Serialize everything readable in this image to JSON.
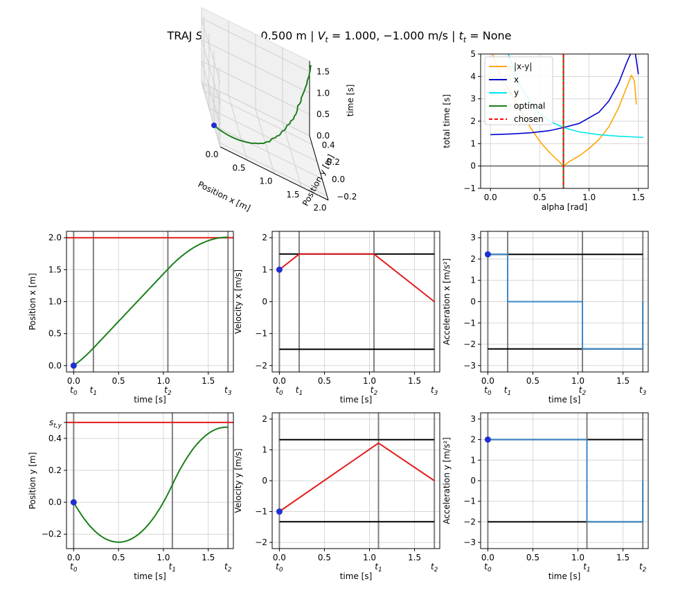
{
  "figure": {
    "title": "TRAJ S_t = 2.000, 0.500 m | V_t = 1.000, −1.000 m/s | t_t = None",
    "title_parts": [
      "TRAJ ",
      "S",
      "t",
      " = 2.000, 0.500 m | ",
      "V",
      "t",
      " = 1.000, −1.000 m/s | ",
      "t",
      "t",
      " = None"
    ]
  },
  "colors": {
    "limit_red": "#e31a1c",
    "limit_black": "#000000",
    "path_green": "#1a7f1a",
    "accel_blue": "#3b88c8",
    "marker_blue": "#1f2fd0",
    "phase_gray": "#808080",
    "grid": "#d6d6d6",
    "orange": "#ffa500",
    "x_blue": "#0000cd",
    "cyan": "#00e5ee",
    "chosen_red": "#ff0000"
  },
  "chart_data": [
    {
      "id": "traj3d",
      "type": "line3d",
      "xlabel": "Position x [m]",
      "ylabel": "Position y [m]",
      "zlabel": "time [s]",
      "xticks": [
        "0.0",
        "0.5",
        "1.0",
        "1.5",
        "2.0"
      ],
      "yticks": [
        "−0.2",
        "0.0",
        "0.2",
        "0.4"
      ],
      "zticks": [
        "0.0",
        "0.5",
        "1.0",
        "1.5"
      ],
      "xlim": [
        0,
        2
      ],
      "ylim": [
        -0.25,
        0.5
      ],
      "zlim": [
        0,
        1.75
      ],
      "start": {
        "x": 0,
        "y": 0,
        "t": 0
      }
    },
    {
      "id": "alpha",
      "type": "line",
      "xlabel": "alpha [rad]",
      "ylabel": "total time [s]",
      "xlim": [
        -0.1,
        1.6
      ],
      "ylim": [
        -1,
        5
      ],
      "xticks": [
        0.0,
        0.5,
        1.0,
        1.5
      ],
      "xtick_labels": [
        "0.0",
        "0.5",
        "1.0",
        "1.5"
      ],
      "yticks": [
        -1,
        0,
        1,
        2,
        3,
        4,
        5
      ],
      "ytick_labels": [
        "−1",
        "0",
        "1",
        "2",
        "3",
        "4",
        "5"
      ],
      "legend_position": "top-left",
      "series": [
        {
          "name": "|x-y|",
          "color": "#ffa500",
          "x": [
            0.02,
            0.1,
            0.2,
            0.3,
            0.4,
            0.5,
            0.6,
            0.7,
            0.74,
            0.8,
            0.9,
            1.0,
            1.1,
            1.2,
            1.3,
            1.38,
            1.43,
            1.46,
            1.48
          ],
          "y": [
            5.0,
            4.0,
            3.3,
            2.5,
            1.75,
            1.1,
            0.6,
            0.18,
            0.0,
            0.2,
            0.45,
            0.78,
            1.18,
            1.75,
            2.6,
            3.5,
            4.05,
            3.8,
            2.75
          ]
        },
        {
          "name": "x",
          "color": "#0000cd",
          "x": [
            0.0,
            0.2,
            0.4,
            0.6,
            0.74,
            0.9,
            1.1,
            1.2,
            1.3,
            1.38,
            1.43,
            1.47,
            1.5
          ],
          "y": [
            1.4,
            1.43,
            1.48,
            1.58,
            1.72,
            1.9,
            2.4,
            2.9,
            3.7,
            4.6,
            5.1,
            5.0,
            4.1
          ]
        },
        {
          "name": "y",
          "color": "#00e5ee",
          "x": [
            0.18,
            0.3,
            0.45,
            0.6,
            0.74,
            0.9,
            1.1,
            1.3,
            1.5,
            1.55
          ],
          "y": [
            5.0,
            3.6,
            2.55,
            2.0,
            1.72,
            1.52,
            1.4,
            1.33,
            1.29,
            1.28
          ]
        },
        {
          "name": "optimal",
          "color": "#1a7f1a",
          "x": [],
          "y": []
        },
        {
          "name": "chosen",
          "color": "#ff0000",
          "dashed": true,
          "vline": 0.74
        }
      ],
      "hline": 0,
      "optimal_vline": 0.74
    },
    {
      "id": "pos_x",
      "type": "line",
      "xlabel": "time [s]",
      "ylabel": "Position x [m]",
      "xlim": [
        -0.08,
        1.78
      ],
      "ylim": [
        -0.1,
        2.1
      ],
      "xticks": [
        0,
        0.5,
        1.0,
        1.5
      ],
      "xtick_labels": [
        "0.0",
        "0.5",
        "1.0",
        "1.5"
      ],
      "yticks": [
        0,
        0.5,
        1.0,
        1.5,
        2.0
      ],
      "ytick_labels": [
        "0.0",
        "0.5",
        "1.0",
        "1.5",
        "2.0"
      ],
      "phases": [
        0,
        0.22,
        1.05,
        1.72
      ],
      "phase_labels": [
        "t0",
        "t1",
        "t2",
        "t3"
      ],
      "target_line": 2.0,
      "trajectory": {
        "type": "pos",
        "p0": 0,
        "v0": 1,
        "accs": [
          2.22,
          0,
          -2.22
        ],
        "times": [
          0,
          0.22,
          1.05,
          1.72
        ]
      },
      "start_point": {
        "x": 0,
        "y": 0
      }
    },
    {
      "id": "vel_x",
      "type": "line",
      "xlabel": "time [s]",
      "ylabel": "Velocity x [m/s]",
      "xlim": [
        -0.08,
        1.78
      ],
      "ylim": [
        -2.2,
        2.2
      ],
      "xticks": [
        0,
        0.5,
        1.0,
        1.5
      ],
      "xtick_labels": [
        "0.0",
        "0.5",
        "1.0",
        "1.5"
      ],
      "yticks": [
        -2,
        -1,
        0,
        1,
        2
      ],
      "ytick_labels": [
        "−2",
        "−1",
        "0",
        "1",
        "2"
      ],
      "phases": [
        0,
        0.22,
        1.05,
        1.72
      ],
      "phase_labels": [
        "t0",
        "t1",
        "t2",
        "t3"
      ],
      "limits": [
        1.49,
        -1.49
      ],
      "points": {
        "x": [
          0,
          0.22,
          1.05,
          1.72
        ],
        "y": [
          1.0,
          1.49,
          1.49,
          0.0
        ]
      },
      "start_point": {
        "x": 0,
        "y": 1.0
      }
    },
    {
      "id": "acc_x",
      "type": "line",
      "xlabel": "time [s]",
      "ylabel": "Acceleration x [m/s²]",
      "xlim": [
        -0.08,
        1.78
      ],
      "ylim": [
        -3.3,
        3.3
      ],
      "xticks": [
        0,
        0.5,
        1.0,
        1.5
      ],
      "xtick_labels": [
        "0.0",
        "0.5",
        "1.0",
        "1.5"
      ],
      "yticks": [
        -3,
        -2,
        -1,
        0,
        1,
        2,
        3
      ],
      "ytick_labels": [
        "−3",
        "−2",
        "−1",
        "0",
        "1",
        "2",
        "3"
      ],
      "phases": [
        0,
        0.22,
        1.05,
        1.72
      ],
      "phase_labels": [
        "t0",
        "t1",
        "t2",
        "t3"
      ],
      "limits": [
        2.22,
        -2.22
      ],
      "points": {
        "x": [
          0,
          0.22,
          0.22,
          1.05,
          1.05,
          1.72,
          1.72
        ],
        "y": [
          2.22,
          2.22,
          0,
          0,
          -2.22,
          -2.22,
          0
        ]
      },
      "start_point": {
        "x": 0,
        "y": 2.22
      }
    },
    {
      "id": "pos_y",
      "type": "line",
      "xlabel": "time [s]",
      "ylabel": "Position y [m]",
      "xlim": [
        -0.08,
        1.78
      ],
      "ylim": [
        -0.29,
        0.56
      ],
      "xticks": [
        0,
        0.5,
        1.0,
        1.5
      ],
      "xtick_labels": [
        "0.0",
        "0.5",
        "1.0",
        "1.5"
      ],
      "yticks": [
        -0.2,
        0.0,
        0.2,
        0.4
      ],
      "ytick_labels": [
        "−0.2",
        "0.0",
        "0.2",
        "0.4"
      ],
      "extra_ytick": {
        "value": 0.5,
        "label": "s",
        "sub": "t,y"
      },
      "phases": [
        0,
        1.1,
        1.72
      ],
      "phase_labels": [
        "t0",
        "t1",
        "t2"
      ],
      "target_line": 0.5,
      "trajectory": {
        "type": "pos",
        "p0": 0,
        "v0": -1,
        "accs": [
          2.0,
          -2.0
        ],
        "times": [
          0,
          1.1,
          1.72
        ]
      },
      "start_point": {
        "x": 0,
        "y": 0
      }
    },
    {
      "id": "vel_y",
      "type": "line",
      "xlabel": "time [s]",
      "ylabel": "Velocity y [m/s]",
      "xlim": [
        -0.08,
        1.78
      ],
      "ylim": [
        -2.2,
        2.2
      ],
      "xticks": [
        0,
        0.5,
        1.0,
        1.5
      ],
      "xtick_labels": [
        "0.0",
        "0.5",
        "1.0",
        "1.5"
      ],
      "yticks": [
        -2,
        -1,
        0,
        1,
        2
      ],
      "ytick_labels": [
        "−2",
        "−1",
        "0",
        "1",
        "2"
      ],
      "phases": [
        0,
        1.1,
        1.72
      ],
      "phase_labels": [
        "t0",
        "t1",
        "t2"
      ],
      "limits": [
        1.33,
        -1.33
      ],
      "points": {
        "x": [
          0,
          1.1,
          1.72
        ],
        "y": [
          -1.0,
          1.22,
          0.0
        ]
      },
      "start_point": {
        "x": 0,
        "y": -1.0
      }
    },
    {
      "id": "acc_y",
      "type": "line",
      "xlabel": "time [s]",
      "ylabel": "Acceleration y [m/s²]",
      "xlim": [
        -0.08,
        1.78
      ],
      "ylim": [
        -3.3,
        3.3
      ],
      "xticks": [
        0,
        0.5,
        1.0,
        1.5
      ],
      "xtick_labels": [
        "0.0",
        "0.5",
        "1.0",
        "1.5"
      ],
      "yticks": [
        -3,
        -2,
        -1,
        0,
        1,
        2,
        3
      ],
      "ytick_labels": [
        "−3",
        "−2",
        "−1",
        "0",
        "1",
        "2",
        "3"
      ],
      "phases": [
        0,
        1.1,
        1.72
      ],
      "phase_labels": [
        "t0",
        "t1",
        "t2"
      ],
      "limits": [
        2.0,
        -2.0
      ],
      "points": {
        "x": [
          0,
          1.1,
          1.1,
          1.72,
          1.72
        ],
        "y": [
          2.0,
          2.0,
          -2.0,
          -2.0,
          0
        ]
      },
      "start_point": {
        "x": 0,
        "y": 2.0
      }
    }
  ]
}
